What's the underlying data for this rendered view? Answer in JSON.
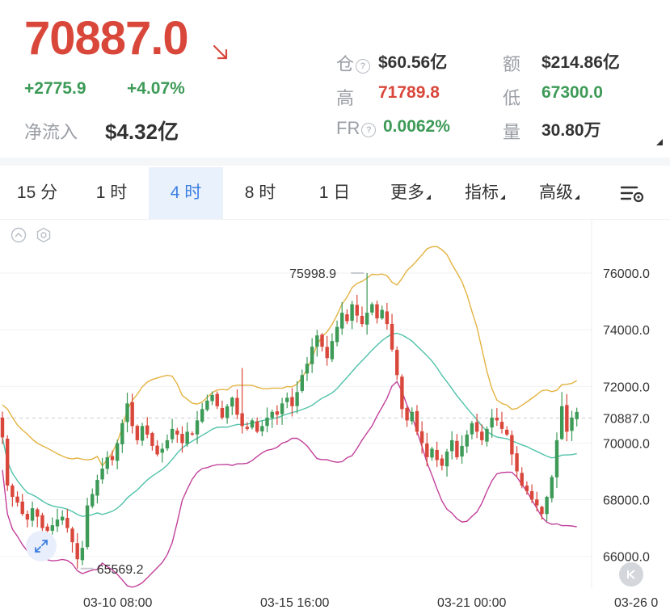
{
  "header": {
    "price": "70887.0",
    "change_abs": "+2775.9",
    "change_pct": "+4.07%",
    "net_inflow_label": "净流入",
    "net_inflow_value": "$4.32亿",
    "stats": {
      "open_interest_label": "仓",
      "open_interest_value": "$60.56亿",
      "turnover_label": "额",
      "turnover_value": "$214.86亿",
      "high_label": "高",
      "high_value": "71789.8",
      "low_label": "低",
      "low_value": "67300.0",
      "funding_label": "FR",
      "funding_value": "0.0062%",
      "volume_label": "量",
      "volume_value": "30.80万"
    }
  },
  "tabs": [
    {
      "label": "15 分",
      "active": false
    },
    {
      "label": "1 时",
      "active": false
    },
    {
      "label": "4 时",
      "active": true
    },
    {
      "label": "8 时",
      "active": false
    },
    {
      "label": "1 日",
      "active": false
    },
    {
      "label": "更多",
      "dropdown": true
    },
    {
      "label": "指标",
      "dropdown": true
    },
    {
      "label": "高级",
      "dropdown": true
    }
  ],
  "colors": {
    "up": "#3d9a57",
    "down": "#d9473b",
    "accent": "#3b7ee0",
    "boll_upper": "#e3b341",
    "boll_mid": "#4fc2a9",
    "boll_lower": "#c2409a"
  },
  "chart": {
    "y_ticks": [
      "76000.0",
      "74000.0",
      "72000.0",
      "70000.0",
      "68000.0",
      "66000.0"
    ],
    "current_price_tag": "70887.0",
    "max_label": "75998.9",
    "min_label": "65569.2",
    "x_ticks": [
      "03-10 08:00",
      "03-15 16:00",
      "03-21 00:00",
      "03-26 0"
    ]
  },
  "chart_data": {
    "type": "candlestick",
    "ylim": [
      65200,
      77000
    ],
    "current_price": 70887.0,
    "max": 75998.9,
    "min": 65569.2,
    "x_ticks": [
      "03-10 08:00",
      "03-15 16:00",
      "03-21 00:00",
      "03-26 0"
    ],
    "closes": [
      70200,
      68500,
      68100,
      67900,
      67500,
      67300,
      67700,
      67400,
      67000,
      66900,
      67100,
      67300,
      67400,
      67000,
      66500,
      65900,
      66300,
      67800,
      68200,
      68700,
      69100,
      69500,
      69400,
      70000,
      70700,
      71400,
      70600,
      70100,
      70600,
      70300,
      69900,
      69600,
      69800,
      70100,
      70500,
      70300,
      70000,
      70400,
      70300,
      70800,
      71200,
      71500,
      71700,
      71300,
      70900,
      71300,
      71600,
      71000,
      70600,
      70500,
      70800,
      70400,
      70600,
      70900,
      71100,
      71000,
      71400,
      71600,
      71300,
      71800,
      72400,
      72800,
      73400,
      73800,
      73400,
      73000,
      73600,
      74100,
      74600,
      74300,
      74900,
      74500,
      74200,
      74600,
      74900,
      74400,
      74700,
      74200,
      73300,
      72400,
      71200,
      70800,
      71100,
      70400,
      70000,
      69500,
      69800,
      69400,
      69200,
      69700,
      70100,
      69500,
      69900,
      70300,
      70700,
      70400,
      70100,
      70500,
      70900,
      70800,
      70500,
      70300,
      69600,
      69000,
      68500,
      68300,
      68000,
      67800,
      67500,
      68100,
      68800,
      70100,
      71300,
      70400,
      70900,
      71100
    ]
  }
}
